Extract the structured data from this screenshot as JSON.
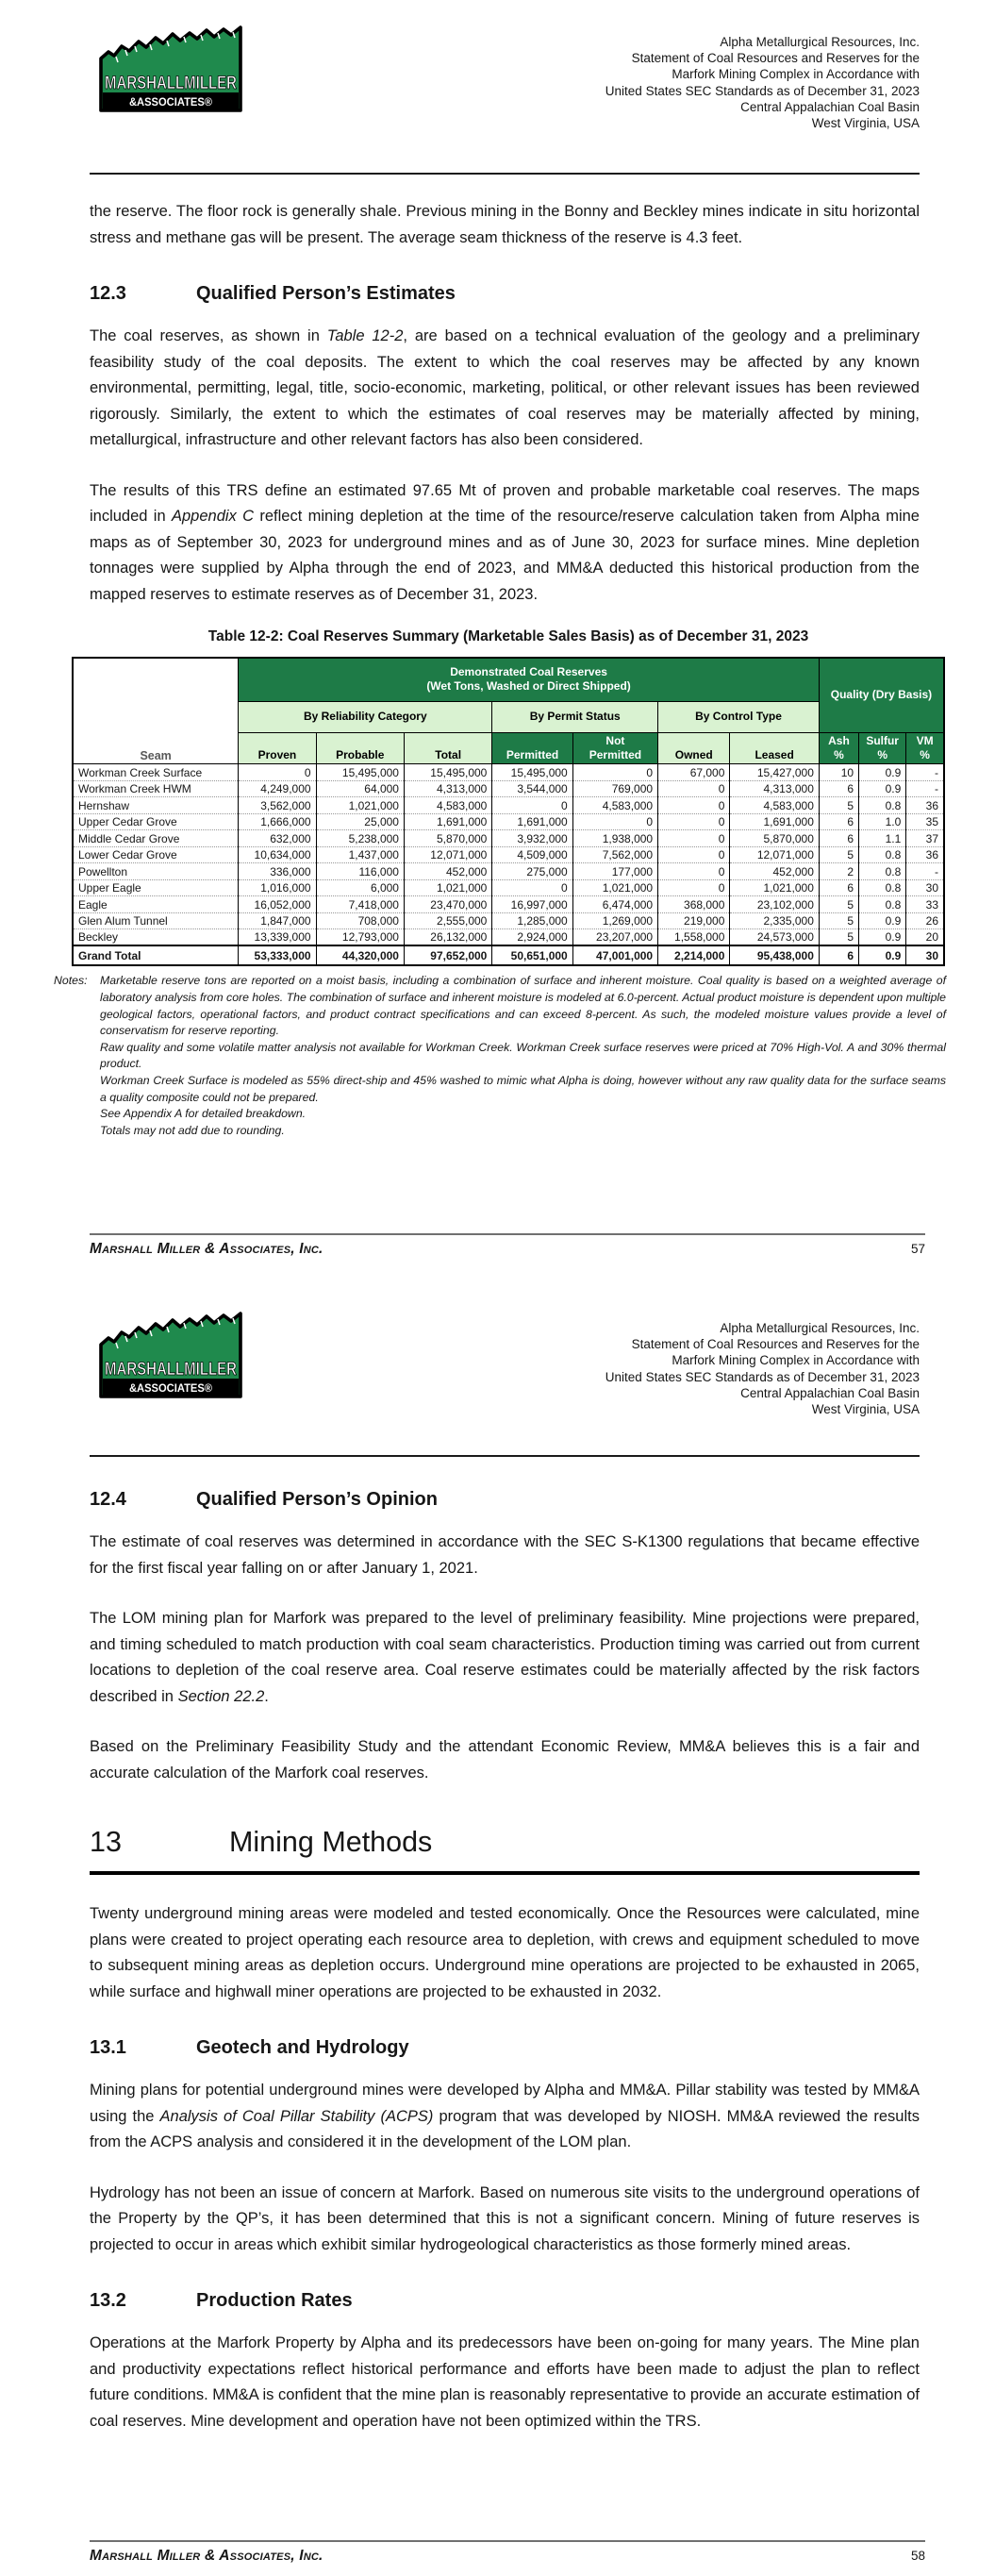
{
  "header": {
    "lines": [
      "Alpha Metallurgical Resources, Inc.",
      "Statement of Coal Resources and Reserves for the",
      "Marfork Mining Complex in Accordance with",
      "United States SEC Standards as of December 31, 2023",
      "Central Appalachian Coal Basin",
      "West Virginia, USA"
    ]
  },
  "logo": {
    "line1": "MARSHALLMILLER",
    "line2": "&ASSOCIATES®"
  },
  "sections": {
    "s12_3": {
      "number": "12.3",
      "title": "Qualified Person’s Estimates"
    },
    "s12_4": {
      "number": "12.4",
      "title": "Qualified Person’s Opinion"
    },
    "s13": {
      "number": "13",
      "title": "Mining Methods"
    },
    "s13_1": {
      "number": "13.1",
      "title": "Geotech and Hydrology"
    },
    "s13_2": {
      "number": "13.2",
      "title": "Production Rates"
    }
  },
  "page1": {
    "intro": [
      {
        "t": "the reserve.  The floor rock is generally shale.  Previous mining in the Bonny and Beckley mines indicate in situ horizontal stress and methane gas will be present.  The average seam thickness of the reserve is 4.3 feet."
      }
    ],
    "p12_3_1": [
      {
        "t": "The coal reserves, as shown in "
      },
      {
        "t": "Table 12-2",
        "i": true
      },
      {
        "t": ", are based on a technical evaluation of the geology and a preliminary feasibility study of the coal deposits.  The extent to which the coal reserves may be affected by any known environmental, permitting, legal, title, socio-economic, marketing, political, or other relevant issues has been reviewed rigorously.  Similarly, the extent to which the estimates of coal reserves may be materially affected by mining, metallurgical, infrastructure and other relevant factors has also been considered."
      }
    ],
    "p12_3_2": [
      {
        "t": "The results of this TRS define an estimated 97.65 Mt of proven and probable marketable coal reserves.  The maps included in "
      },
      {
        "t": "Appendix C",
        "i": true
      },
      {
        "t": " reflect mining depletion at the time of the resource/reserve calculation taken from Alpha mine maps as of September 30, 2023 for underground mines and as of June 30, 2023 for surface mines.  Mine depletion tonnages were supplied by Alpha through the end of 2023, and MM&A deducted this historical production from the mapped reserves to estimate reserves as of December 31, 2023."
      }
    ]
  },
  "table": {
    "title": "Table 12-2:  Coal Reserves Summary (Marketable Sales Basis) as of December 31, 2023",
    "seam_label": "Seam",
    "demonstrated": "Demonstrated Coal Reserves\n(Wet Tons, Washed or Direct Shipped)",
    "quality": "Quality (Dry Basis)",
    "group_reliability": "By Reliability Category",
    "group_permit": "By Permit Status",
    "group_control": "By Control Type",
    "col_headers": [
      "Proven",
      "Probable",
      "Total",
      "Permitted",
      "Not\nPermitted",
      "Owned",
      "Leased",
      "Ash\n%",
      "Sulfur\n%",
      "VM\n%"
    ],
    "rows": [
      [
        "Workman Creek Surface",
        "0",
        "15,495,000",
        "15,495,000",
        "15,495,000",
        "0",
        "67,000",
        "15,427,000",
        "10",
        "0.9",
        "-"
      ],
      [
        "Workman Creek HWM",
        "4,249,000",
        "64,000",
        "4,313,000",
        "3,544,000",
        "769,000",
        "0",
        "4,313,000",
        "6",
        "0.9",
        "-"
      ],
      [
        "Hernshaw",
        "3,562,000",
        "1,021,000",
        "4,583,000",
        "0",
        "4,583,000",
        "0",
        "4,583,000",
        "5",
        "0.8",
        "36"
      ],
      [
        "Upper Cedar Grove",
        "1,666,000",
        "25,000",
        "1,691,000",
        "1,691,000",
        "0",
        "0",
        "1,691,000",
        "6",
        "1.0",
        "35"
      ],
      [
        "Middle Cedar Grove",
        "632,000",
        "5,238,000",
        "5,870,000",
        "3,932,000",
        "1,938,000",
        "0",
        "5,870,000",
        "6",
        "1.1",
        "37"
      ],
      [
        "Lower Cedar Grove",
        "10,634,000",
        "1,437,000",
        "12,071,000",
        "4,509,000",
        "7,562,000",
        "0",
        "12,071,000",
        "5",
        "0.8",
        "36"
      ],
      [
        "Powellton",
        "336,000",
        "116,000",
        "452,000",
        "275,000",
        "177,000",
        "0",
        "452,000",
        "2",
        "0.8",
        "-"
      ],
      [
        "Upper Eagle",
        "1,016,000",
        "6,000",
        "1,021,000",
        "0",
        "1,021,000",
        "0",
        "1,021,000",
        "6",
        "0.8",
        "30"
      ],
      [
        "Eagle",
        "16,052,000",
        "7,418,000",
        "23,470,000",
        "16,997,000",
        "6,474,000",
        "368,000",
        "23,102,000",
        "5",
        "0.8",
        "33"
      ],
      [
        "Glen Alum Tunnel",
        "1,847,000",
        "708,000",
        "2,555,000",
        "1,285,000",
        "1,269,000",
        "219,000",
        "2,335,000",
        "5",
        "0.9",
        "26"
      ],
      [
        "Beckley",
        "13,339,000",
        "12,793,000",
        "26,132,000",
        "2,924,000",
        "23,207,000",
        "1,558,000",
        "24,573,000",
        "5",
        "0.9",
        "20"
      ]
    ],
    "total_rows": [
      [
        "Grand Total",
        "53,333,000",
        "44,320,000",
        "97,652,000",
        "50,651,000",
        "47,001,000",
        "2,214,000",
        "95,438,000",
        "6",
        "0.9",
        "30"
      ]
    ]
  },
  "notes": {
    "label": "Notes:",
    "items": [
      "Marketable reserve tons are reported on a moist basis, including a combination of surface and inherent moisture.  Coal quality is based on a weighted average of laboratory analysis from core holes.  The combination of surface and inherent moisture is modeled at 6.0-percent.  Actual product moisture is dependent upon multiple geological factors, operational factors, and product contract specifications and can exceed 8-percent.  As such, the modeled moisture values provide a level of conservatism for reserve reporting.",
      "Raw quality and some volatile matter analysis not available for Workman Creek.  Workman Creek surface reserves were priced at 70% High-Vol. A and 30% thermal product.",
      "Workman Creek Surface is modeled as 55% direct-ship and 45% washed to mimic what Alpha is doing, however without any raw quality data for the surface seams a quality composite could not be prepared.",
      "See Appendix A for detailed breakdown.",
      "Totals may not add due to rounding."
    ]
  },
  "page2": {
    "p12_4_1": [
      {
        "t": "The estimate of coal reserves was determined in accordance with the SEC S-K1300 regulations that became effective for the first fiscal year falling on or after January 1, 2021."
      }
    ],
    "p12_4_2": [
      {
        "t": "The LOM mining plan for Marfork was prepared to the level of preliminary feasibility.  Mine projections were prepared, and timing scheduled to match production with coal seam characteristics.  Production timing was carried out from current locations to depletion of the coal reserve area.  Coal reserve estimates could be materially affected by the risk factors described in "
      },
      {
        "t": "Section 22.2",
        "i": true
      },
      {
        "t": "."
      }
    ],
    "p12_4_3": [
      {
        "t": "Based on the Preliminary Feasibility Study and the attendant Economic Review, MM&A believes this is a fair and accurate calculation of the Marfork coal reserves."
      }
    ],
    "p13_intro": [
      {
        "t": "Twenty underground mining areas were modeled and tested economically.  Once the Resources were calculated, mine plans were created to project operating each resource area to depletion, with crews and equipment scheduled to move to subsequent mining areas as depletion occurs.  Underground mine operations are projected to be exhausted in 2065, while surface and highwall miner operations are projected to be exhausted in 2032."
      }
    ],
    "p13_1_1": [
      {
        "t": "Mining plans for potential underground mines were developed by Alpha and MM&A.  Pillar stability was tested by MM&A using the "
      },
      {
        "t": "Analysis of Coal Pillar Stability (ACPS)",
        "i": true
      },
      {
        "t": " program that was developed by NIOSH.  MM&A reviewed the results from the ACPS analysis and considered it in the development of the LOM plan."
      }
    ],
    "p13_1_2": [
      {
        "t": "Hydrology has not been an issue of concern at Marfork.  Based on numerous site visits to the underground operations of the Property by the QP’s, it has been determined that this is not a significant concern.  Mining of future reserves is projected to occur in areas which exhibit similar hydrogeological characteristics as those formerly mined areas."
      }
    ],
    "p13_2_1": [
      {
        "t": "Operations at the Marfork Property by Alpha and its predecessors have been on-going for many years.  The Mine plan and productivity expectations reflect historical performance and efforts have been made to adjust the plan to reflect future conditions.  MM&A is confident that the mine plan is reasonably representative to provide an accurate estimation of coal reserves.  Mine development and operation have not been optimized within the TRS."
      }
    ]
  },
  "footer": {
    "company": "Marshall Miller & Associates, Inc.",
    "page1_number": "57",
    "page2_number": "58"
  },
  "colors": {
    "logo_green": "#1f8a4d",
    "table_dark_green": "#1e7b47",
    "table_light_green": "#d9f2d1",
    "footer_rule_gray": "#707070"
  }
}
